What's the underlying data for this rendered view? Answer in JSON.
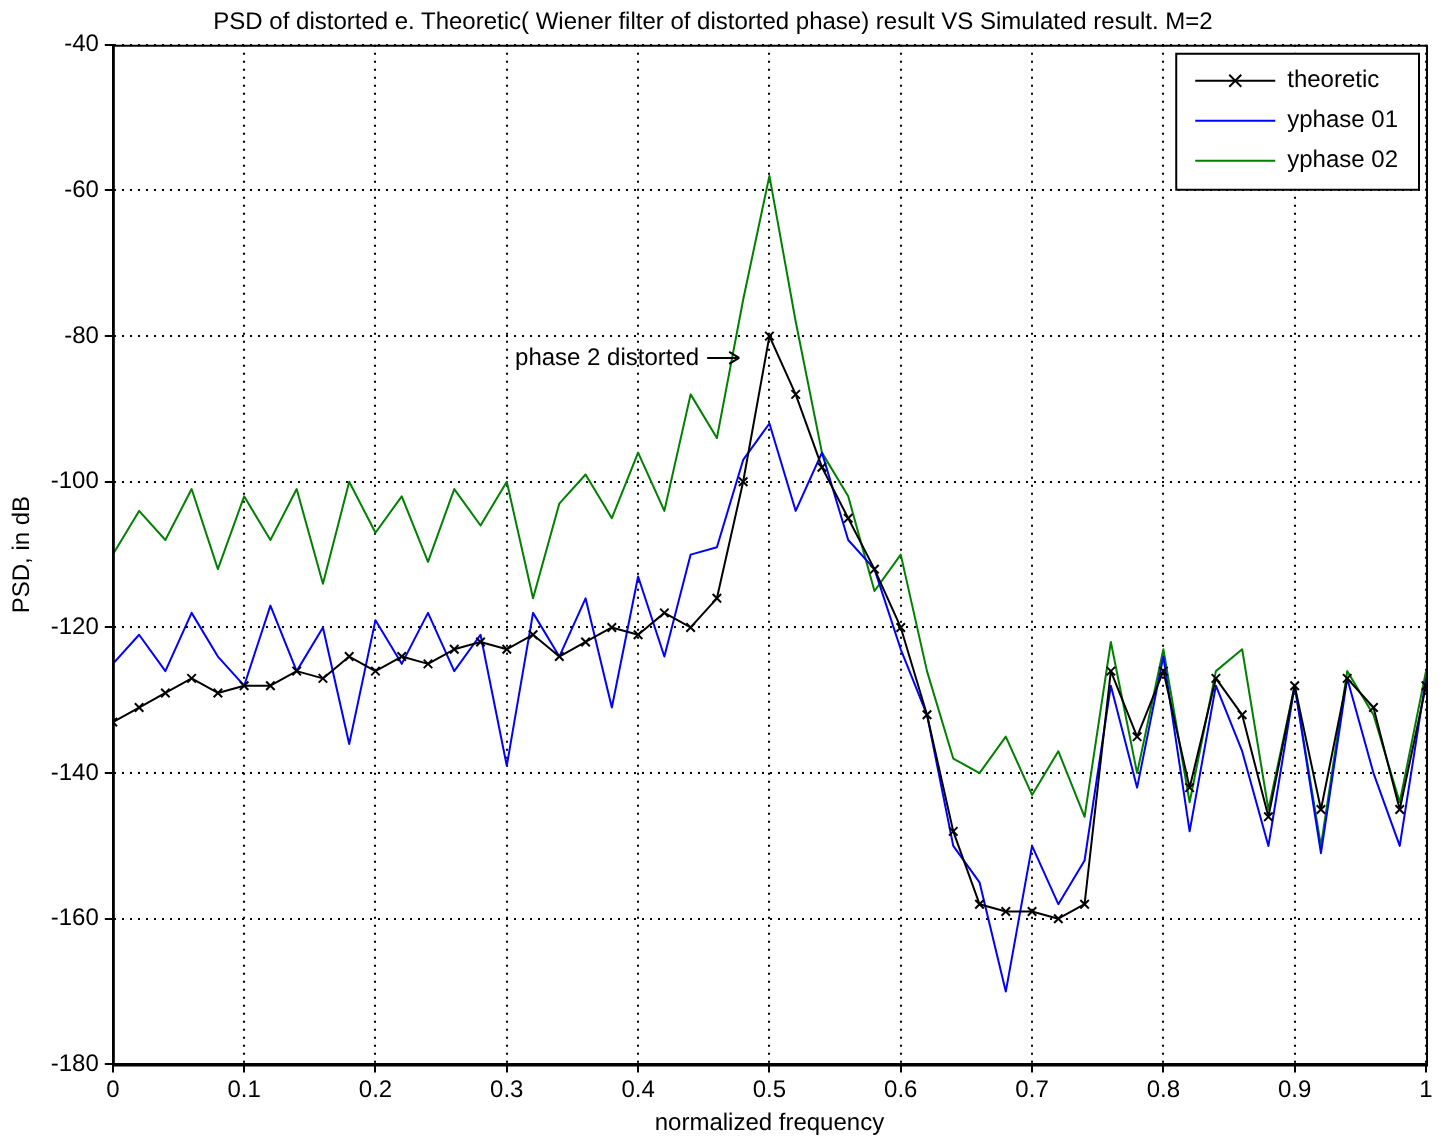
{
  "chart_data": {
    "type": "line",
    "title": "PSD of distorted e. Theoretic( Wiener filter of distorted phase) result VS Simulated result. M=2",
    "xlabel": "normalized frequency",
    "ylabel": "PSD, in dB",
    "x": [
      0,
      0.02,
      0.04,
      0.06,
      0.08,
      0.1,
      0.12,
      0.14,
      0.16,
      0.18,
      0.2,
      0.22,
      0.24,
      0.26,
      0.28,
      0.3,
      0.32,
      0.34,
      0.36,
      0.38,
      0.4,
      0.42,
      0.44,
      0.46,
      0.48,
      0.5,
      0.52,
      0.54,
      0.56,
      0.58,
      0.6,
      0.62,
      0.64,
      0.66,
      0.68,
      0.7,
      0.72,
      0.74,
      0.76,
      0.78,
      0.8,
      0.82,
      0.84,
      0.86,
      0.88,
      0.9,
      0.92,
      0.94,
      0.96,
      0.98,
      1
    ],
    "series": [
      {
        "name": "theoretic",
        "color": "#000000",
        "marker": "cross",
        "values": [
          -133,
          -131,
          -129,
          -127,
          -129,
          -128,
          -128,
          -126,
          -127,
          -124,
          -126,
          -124,
          -125,
          -123,
          -122,
          -123,
          -121,
          -124,
          -122,
          -120,
          -121,
          -118,
          -120,
          -116,
          -100,
          -80,
          -88,
          -98,
          -105,
          -112,
          -120,
          -132,
          -148,
          -158,
          -159,
          -159,
          -160,
          -158,
          -126,
          -135,
          -126,
          -142,
          -127,
          -132,
          -146,
          -128,
          -145,
          -127,
          -131,
          -145,
          -128
        ]
      },
      {
        "name": "yphase 01",
        "color": "#0000ff",
        "values": [
          -125,
          -121,
          -126,
          -118,
          -124,
          -128,
          -117,
          -126,
          -120,
          -136,
          -119,
          -125,
          -118,
          -126,
          -121,
          -139,
          -118,
          -124,
          -116,
          -131,
          -113,
          -124,
          -110,
          -109,
          -97,
          -92,
          -104,
          -96,
          -108,
          -112,
          -123,
          -132,
          -150,
          -155,
          -170,
          -150,
          -158,
          -152,
          -128,
          -142,
          -124,
          -148,
          -128,
          -137,
          -150,
          -128,
          -151,
          -127,
          -140,
          -150,
          -127
        ]
      },
      {
        "name": "yphase 02",
        "color": "#008000",
        "values": [
          -110,
          -104,
          -108,
          -101,
          -112,
          -102,
          -108,
          -101,
          -114,
          -100,
          -107,
          -102,
          -111,
          -101,
          -106,
          -100,
          -116,
          -103,
          -99,
          -105,
          -96,
          -104,
          -88,
          -94,
          -75,
          -58,
          -78,
          -96,
          -102,
          -115,
          -110,
          -126,
          -138,
          -140,
          -135,
          -143,
          -137,
          -146,
          -122,
          -140,
          -123,
          -144,
          -126,
          -123,
          -145,
          -128,
          -150,
          -126,
          -132,
          -144,
          -126
        ]
      }
    ],
    "xlim": [
      0,
      1
    ],
    "xticks": [
      0,
      0.1,
      0.2,
      0.3,
      0.4,
      0.5,
      0.6,
      0.7,
      0.8,
      0.9,
      1
    ],
    "ylim": [
      -180,
      -40
    ],
    "yticks": [
      -180,
      -160,
      -140,
      -120,
      -100,
      -80,
      -60,
      -40
    ],
    "grid": true,
    "legend": "top right",
    "line_style": "solid",
    "annotations": [
      {
        "text": "phase 2 distorted",
        "x": 0.48,
        "y": -83
      }
    ]
  }
}
